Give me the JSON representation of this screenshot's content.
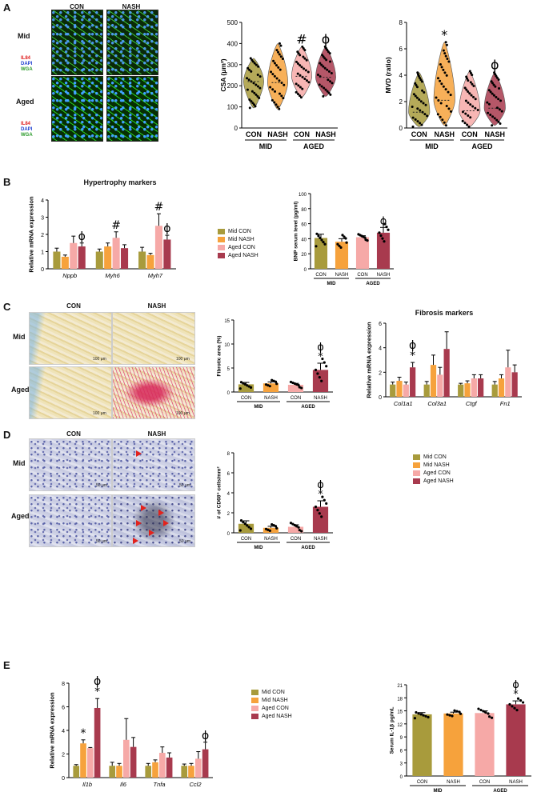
{
  "colors": {
    "mid_con": "#A89B3C",
    "mid_nash": "#F6A23C",
    "aged_con": "#F6A9A7",
    "aged_nash": "#A83A4E"
  },
  "panelA": {
    "letter": "A",
    "col_con": "CON",
    "col_nash": "NASH",
    "row_mid": "Mid",
    "row_aged": "Aged",
    "channels": [
      "IL84",
      "DAPI",
      "WGA"
    ]
  },
  "panelB": {
    "letter": "B",
    "title": "Hypertrophy markers"
  },
  "panelC": {
    "letter": "C",
    "col_con": "CON",
    "col_nash": "NASH",
    "row_mid": "Mid",
    "row_aged": "Aged",
    "scale": "100 μm",
    "title": "Fibrosis markers"
  },
  "panelD": {
    "letter": "D",
    "col_con": "CON",
    "col_nash": "NASH",
    "row_mid": "Mid",
    "row_aged": "Aged",
    "scale": "50 μm"
  },
  "panelE": {
    "letter": "E"
  },
  "legend": [
    "Mid CON",
    "Mid NASH",
    "Aged CON",
    "Aged NASH"
  ],
  "chart_data": [
    {
      "id": "csa",
      "type": "violin",
      "ylabel": "CSA (μm²)",
      "ylim": [
        0,
        500
      ],
      "yticks": [
        0,
        100,
        200,
        300,
        400,
        500
      ],
      "categories": [
        "CON",
        "NASH",
        "CON",
        "NASH"
      ],
      "groups": [
        "MID",
        "AGED"
      ],
      "medians": [
        220,
        215,
        245,
        240
      ],
      "ranges": [
        [
          95,
          330
        ],
        [
          90,
          400
        ],
        [
          145,
          385
        ],
        [
          150,
          385
        ]
      ],
      "annotations": [
        "",
        "",
        "#",
        "ϕ"
      ]
    },
    {
      "id": "mvd",
      "type": "violin",
      "ylabel": "MVD (ratio)",
      "ylim": [
        0,
        8
      ],
      "yticks": [
        0,
        2,
        4,
        6,
        8
      ],
      "categories": [
        "CON",
        "NASH",
        "CON",
        "NASH"
      ],
      "groups": [
        "MID",
        "AGED"
      ],
      "medians": [
        1.2,
        2.1,
        1.3,
        1.5
      ],
      "ranges": [
        [
          0.1,
          4.2
        ],
        [
          0.2,
          6.5
        ],
        [
          0.1,
          4.3
        ],
        [
          0.2,
          4.2
        ]
      ],
      "annotations": [
        "",
        "*",
        "",
        "ϕ"
      ]
    },
    {
      "id": "hyp",
      "type": "bar",
      "ylabel": "Relative mRNA expression",
      "ylim": [
        0,
        4
      ],
      "yticks": [
        0,
        1,
        2,
        3,
        4
      ],
      "categories": [
        "Nppb",
        "Myh6",
        "Myh7"
      ],
      "series": [
        {
          "name": "Mid CON",
          "values": [
            1.0,
            1.0,
            1.0
          ],
          "err": [
            0.2,
            0.15,
            0.25
          ]
        },
        {
          "name": "Mid NASH",
          "values": [
            0.7,
            1.3,
            0.8
          ],
          "err": [
            0.1,
            0.2,
            0.1
          ]
        },
        {
          "name": "Aged CON",
          "values": [
            1.5,
            1.8,
            2.5
          ],
          "err": [
            0.4,
            0.35,
            0.7
          ]
        },
        {
          "name": "Aged NASH",
          "values": [
            1.3,
            1.2,
            1.7
          ],
          "err": [
            0.2,
            0.2,
            0.25
          ]
        }
      ],
      "annotations": [
        {
          "cat": 0,
          "s": 3,
          "t": "ϕ"
        },
        {
          "cat": 1,
          "s": 2,
          "t": "#"
        },
        {
          "cat": 2,
          "s": 2,
          "t": "#"
        },
        {
          "cat": 2,
          "s": 3,
          "t": "ϕ"
        }
      ]
    },
    {
      "id": "bnp",
      "type": "bar",
      "ylabel": "BNP serum level (pg/ml)",
      "ylim": [
        0,
        100
      ],
      "yticks": [
        0,
        20,
        40,
        60,
        80,
        100
      ],
      "categories": [
        "CON",
        "NASH",
        "CON",
        "NASH"
      ],
      "groups": [
        "MID",
        "AGED"
      ],
      "values": [
        41,
        36,
        42,
        48
      ],
      "err": [
        5,
        4,
        2,
        7
      ],
      "annotations": [
        "",
        "",
        "",
        "ϕ"
      ]
    },
    {
      "id": "fib",
      "type": "bar",
      "ylabel": "Fibrotic area (%)",
      "ylim": [
        0,
        15
      ],
      "yticks": [
        0,
        5,
        10,
        15
      ],
      "categories": [
        "CON",
        "NASH",
        "CON",
        "NASH"
      ],
      "groups": [
        "MID",
        "AGED"
      ],
      "values": [
        1.6,
        1.8,
        1.5,
        4.6
      ],
      "err": [
        0.4,
        0.3,
        0.3,
        1.4
      ],
      "annotations": [
        "",
        "",
        "",
        "ϕ*"
      ]
    },
    {
      "id": "fibm",
      "type": "bar",
      "ylabel": "Relative mRNA expression",
      "ylim": [
        0,
        6
      ],
      "yticks": [
        0,
        2,
        4,
        6
      ],
      "categories": [
        "Col1a1",
        "Col3a1",
        "Ctgf",
        "Fn1"
      ],
      "series": [
        {
          "name": "Mid CON",
          "values": [
            1.0,
            1.0,
            1.0,
            1.0
          ],
          "err": [
            0.2,
            0.25,
            0.1,
            0.25
          ]
        },
        {
          "name": "Mid NASH",
          "values": [
            1.3,
            2.6,
            1.1,
            1.5
          ],
          "err": [
            0.3,
            0.8,
            0.2,
            0.3
          ]
        },
        {
          "name": "Aged CON",
          "values": [
            1.0,
            1.8,
            1.5,
            2.4
          ],
          "err": [
            0.2,
            0.6,
            0.3,
            1.4
          ]
        },
        {
          "name": "Aged NASH",
          "values": [
            2.4,
            3.9,
            1.5,
            2.0
          ],
          "err": [
            0.4,
            1.4,
            0.3,
            0.6
          ]
        }
      ],
      "annotations": [
        {
          "cat": 0,
          "s": 3,
          "t": "ϕ*"
        }
      ]
    },
    {
      "id": "cd68",
      "type": "bar",
      "ylabel": "# of CD68⁺ cells/mm²",
      "ylim": [
        0,
        8
      ],
      "yticks": [
        0,
        2,
        4,
        6,
        8
      ],
      "categories": [
        "CON",
        "NASH",
        "CON",
        "NASH"
      ],
      "groups": [
        "MID",
        "AGED"
      ],
      "values": [
        0.9,
        0.5,
        0.6,
        2.6
      ],
      "err": [
        0.3,
        0.15,
        0.2,
        0.6
      ],
      "annotations": [
        "",
        "",
        "",
        "ϕ*"
      ]
    },
    {
      "id": "infl",
      "type": "bar",
      "ylabel": "Relative mRNA expression",
      "ylim": [
        0,
        8
      ],
      "yticks": [
        0,
        2,
        4,
        6,
        8
      ],
      "categories": [
        "Il1b",
        "Il6",
        "Tnfa",
        "Ccl2"
      ],
      "series": [
        {
          "name": "Mid CON",
          "values": [
            1.0,
            1.0,
            1.0,
            1.0
          ],
          "err": [
            0.1,
            0.3,
            0.2,
            0.15
          ]
        },
        {
          "name": "Mid NASH",
          "values": [
            2.9,
            1.0,
            1.3,
            1.0
          ],
          "err": [
            0.3,
            0.2,
            0.2,
            0.2
          ]
        },
        {
          "name": "Aged CON",
          "values": [
            2.5,
            3.2,
            2.1,
            1.6
          ],
          "err": [
            0.05,
            1.8,
            0.5,
            0.6
          ]
        },
        {
          "name": "Aged NASH",
          "values": [
            5.9,
            2.6,
            1.7,
            2.4
          ],
          "err": [
            0.8,
            0.8,
            0.4,
            0.6
          ]
        }
      ],
      "annotations": [
        {
          "cat": 0,
          "s": 1,
          "t": "*"
        },
        {
          "cat": 0,
          "s": 3,
          "t": "ϕ*"
        },
        {
          "cat": 3,
          "s": 3,
          "t": "ϕ"
        }
      ]
    },
    {
      "id": "il1b",
      "type": "bar",
      "ylabel": "Serum IL-1β pg/mL",
      "ylim": [
        0,
        21
      ],
      "yticks": [
        0,
        3,
        6,
        9,
        12,
        15,
        18,
        21
      ],
      "categories": [
        "CON",
        "NASH",
        "CON",
        "NASH"
      ],
      "groups": [
        "MID",
        "AGED"
      ],
      "values": [
        14.2,
        14.4,
        14.5,
        16.5
      ],
      "err": [
        0.4,
        0.3,
        0.5,
        0.8
      ],
      "annotations": [
        "",
        "",
        "",
        "ϕ*"
      ]
    }
  ]
}
